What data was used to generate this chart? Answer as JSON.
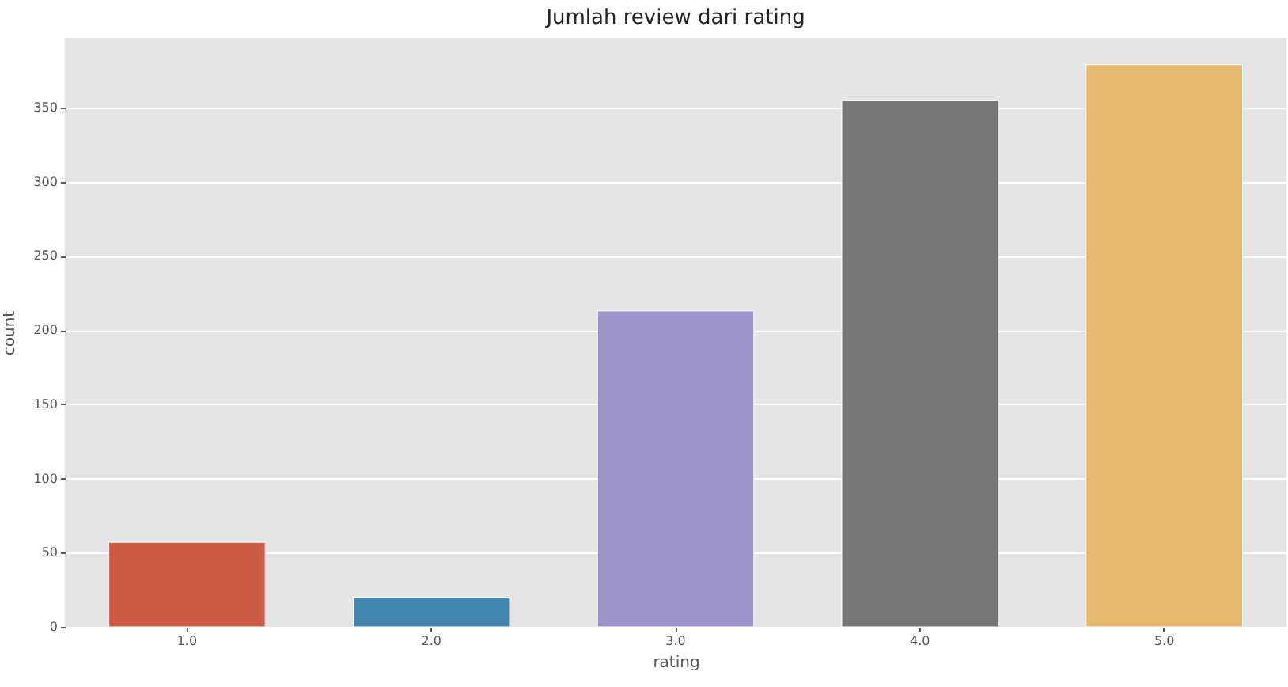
{
  "chart_data": {
    "type": "bar",
    "title": "Jumlah review dari rating",
    "xlabel": "rating",
    "ylabel": "count",
    "categories": [
      "1.0",
      "2.0",
      "3.0",
      "4.0",
      "5.0"
    ],
    "values": [
      57,
      20,
      213,
      355,
      379
    ],
    "colors": [
      "#cd5b47",
      "#4386ad",
      "#9e96cb",
      "#767676",
      "#e6b970"
    ],
    "ylim": [
      0,
      397
    ],
    "yticks": [
      0,
      50,
      100,
      150,
      200,
      250,
      300,
      350
    ],
    "grid": "y"
  }
}
